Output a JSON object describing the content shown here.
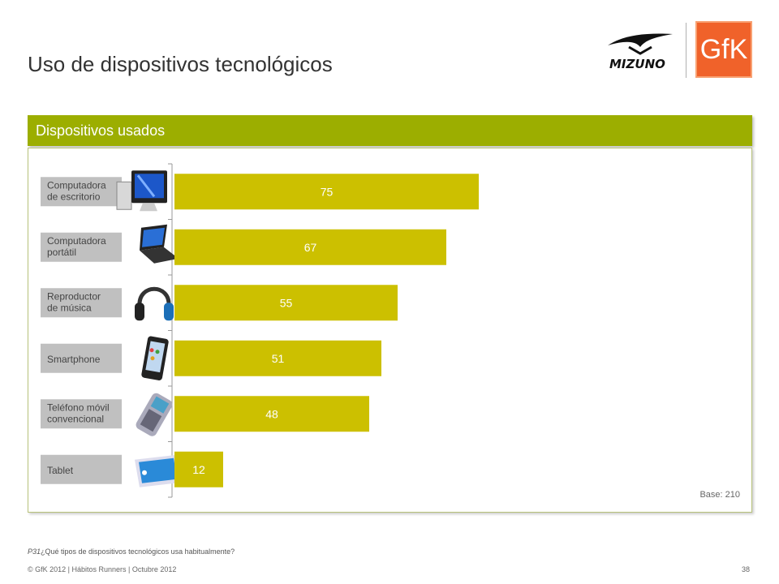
{
  "slide": {
    "title": "Uso de dispositivos tecnológicos",
    "panel_title": "Dispositivos usados",
    "base": "Base: 210",
    "question_code": "P31",
    "question_text": "¿Qué tipos de dispositivos tecnológicos usa habitualmente?",
    "footer": "© GfK 2012 | Hábitos Runners | Octubre 2012",
    "page_number": "38",
    "logos": {
      "left": "MIZUNO",
      "right": "GfK"
    }
  },
  "colors": {
    "header": "#9cae00",
    "bar": "#ccc000",
    "label_box": "#c0c0c0",
    "gfk": "#f0622a"
  },
  "chart_data": {
    "type": "bar",
    "orientation": "horizontal",
    "categories": [
      "Computadora de escritorio",
      "Computadora portátil",
      "Reproductor de música",
      "Smartphone",
      "Teléfono móvil convencional",
      "Tablet"
    ],
    "label_lines": [
      [
        "Computadora",
        "de escritorio"
      ],
      [
        "Computadora",
        "portátil"
      ],
      [
        "Reproductor",
        "de música"
      ],
      [
        "Smartphone"
      ],
      [
        "Teléfono móvil",
        "convencional"
      ],
      [
        "Tablet"
      ]
    ],
    "icons": [
      "desktop-computer-icon",
      "laptop-icon",
      "headphones-icon",
      "smartphone-icon",
      "mobile-phone-icon",
      "tablet-icon"
    ],
    "values": [
      75,
      67,
      55,
      51,
      48,
      12
    ],
    "xlim": [
      0,
      100
    ],
    "legend": "none",
    "grid": false
  }
}
